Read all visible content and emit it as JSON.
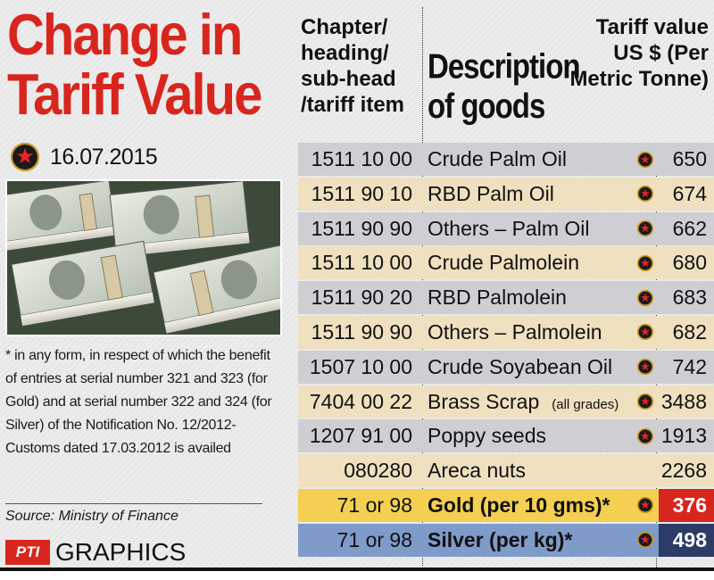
{
  "title": "Change in Tariff Value",
  "date": "16.07.2015",
  "footnote": "* in any form, in respect of which the benefit of entries at serial number 321 and 323 (for Gold) and at serial number 322 and 324 (for Silver) of the Notification No. 12/2012-Customs dated 17.03.2012 is availed",
  "source": "Source: Ministry of Finance",
  "credit": {
    "logo": "PTI",
    "text": "GRAPHICS"
  },
  "headers": {
    "chapter": "Chapter/ heading/ sub-head /tariff item",
    "description": "Description of goods",
    "value": "Tariff value US $ (Per Metric Tonne)"
  },
  "rows": [
    {
      "code": "1511 10 00",
      "description": "Crude Palm Oil",
      "note": "",
      "value": "650",
      "bg": "#cfcfd3",
      "marker": true
    },
    {
      "code": "1511 90 10",
      "description": "RBD Palm Oil",
      "note": "",
      "value": "674",
      "bg": "#efe0c0",
      "marker": true
    },
    {
      "code": "1511 90 90",
      "description": "Others – Palm Oil",
      "note": "",
      "value": "662",
      "bg": "#cfcfd3",
      "marker": true
    },
    {
      "code": "1511 10 00",
      "description": "Crude Palmolein",
      "note": "",
      "value": "680",
      "bg": "#efe0c0",
      "marker": true
    },
    {
      "code": "1511 90 20",
      "description": "RBD Palmolein",
      "note": "",
      "value": "683",
      "bg": "#cfcfd3",
      "marker": true
    },
    {
      "code": "1511 90 90",
      "description": "Others – Palmolein",
      "note": "",
      "value": "682",
      "bg": "#efe0c0",
      "marker": true
    },
    {
      "code": "1507 10 00",
      "description": "Crude Soyabean Oil",
      "note": "",
      "value": "742",
      "bg": "#cfcfd3",
      "marker": true
    },
    {
      "code": "7404 00 22",
      "description": "Brass Scrap",
      "note": "(all grades)",
      "value": "3488",
      "bg": "#efe0c0",
      "marker": true
    },
    {
      "code": "1207 91 00",
      "description": "Poppy seeds",
      "note": "",
      "value": "1913",
      "bg": "#cfcfd3",
      "marker": true
    },
    {
      "code": "080280",
      "description": "Areca nuts",
      "note": "",
      "value": "2268",
      "bg": "#efe0c0",
      "marker": false
    },
    {
      "code": "71 or 98",
      "description": "Gold (per 10 gms)*",
      "note": "",
      "value": "376",
      "bg": "#f5cf52",
      "marker": true,
      "style": "gold"
    },
    {
      "code": "71 or 98",
      "description": "Silver (per kg)*",
      "note": "",
      "value": "498",
      "bg": "#7f9bc9",
      "marker": true,
      "style": "silver"
    }
  ],
  "colors": {
    "title_red": "#d8261e",
    "gold_value": "#d8261e",
    "silver_value": "#2c3c66"
  },
  "icons": {
    "date_marker": "star-badge-icon",
    "row_marker": "star-badge-icon",
    "photo": "dollar-bundles-image"
  }
}
